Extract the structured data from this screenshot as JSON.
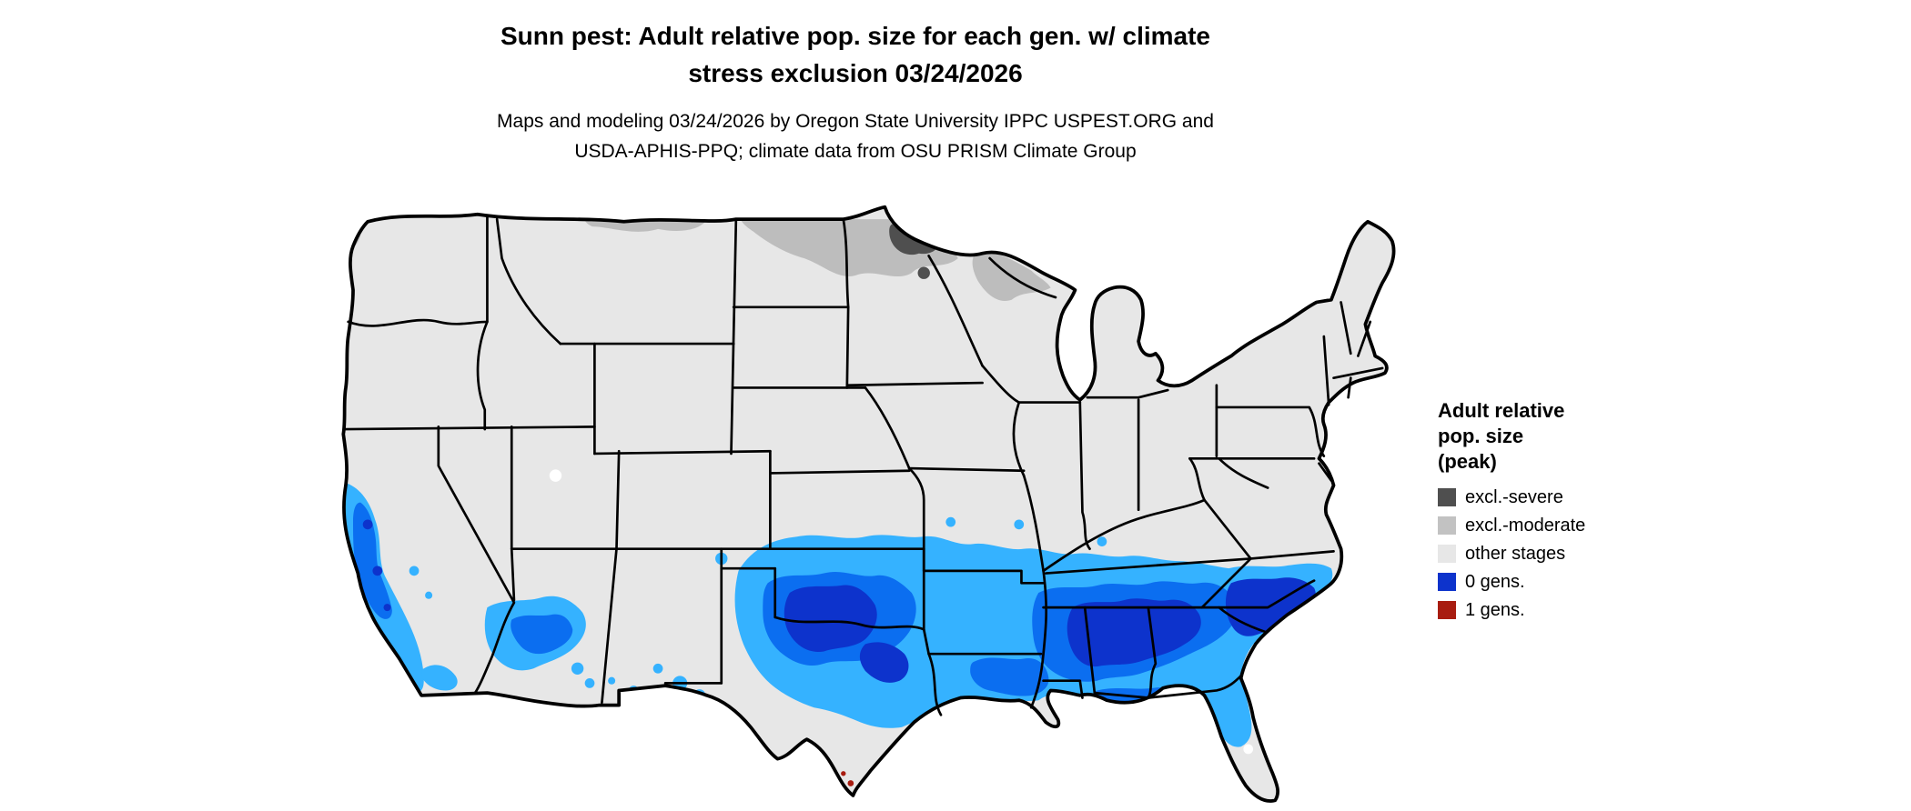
{
  "title": {
    "line1": "Sunn pest: Adult relative pop. size for each gen. w/ climate",
    "line2": "stress exclusion 03/24/2026"
  },
  "subtitle": {
    "line1": "Maps and modeling 03/24/2026 by Oregon State University IPPC USPEST.ORG and",
    "line2": "USDA-APHIS-PPQ; climate data from OSU PRISM Climate Group"
  },
  "legend": {
    "title_lines": [
      "Adult relative",
      "pop. size",
      "(peak)"
    ],
    "items": [
      {
        "label": "excl.-severe",
        "color": "#4f4f4f"
      },
      {
        "label": "excl.-moderate",
        "color": "#c2c2c2"
      },
      {
        "label": "other stages",
        "color": "#e7e7e7"
      },
      {
        "label": "0 gens.",
        "color": "#0d33cc"
      },
      {
        "label": "1 gens.",
        "color": "#a81c10"
      }
    ]
  },
  "map": {
    "region": "Continental United States",
    "colors": {
      "base": "#e7e7e7",
      "border": "#000000",
      "excl_moderate": "#bdbdbd",
      "excl_severe": "#4f4f4f",
      "pop_light": "#35b2ff",
      "pop_mid": "#0b6ef0",
      "pop_high": "#0d33cc",
      "one_gen": "#a81c10",
      "water": "#ffffff"
    }
  }
}
